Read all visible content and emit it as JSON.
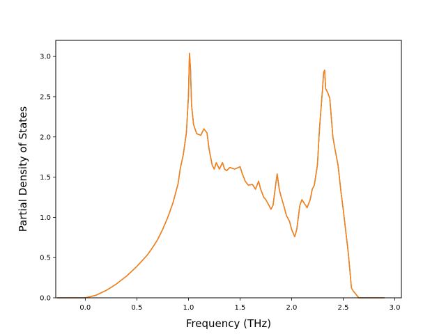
{
  "chart_data": {
    "type": "line",
    "xlabel": "Frequency (THz)",
    "ylabel": "Partial Density of States",
    "xlim": [
      -0.286,
      3.064
    ],
    "ylim": [
      0.0,
      3.2
    ],
    "x_ticks": [
      0.0,
      0.5,
      1.0,
      1.5,
      2.0,
      2.5,
      3.0
    ],
    "x_tick_labels": [
      "0.0",
      "0.5",
      "1.0",
      "1.5",
      "2.0",
      "2.5",
      "3.0"
    ],
    "y_ticks": [
      0.0,
      0.5,
      1.0,
      1.5,
      2.0,
      2.5,
      3.0
    ],
    "y_tick_labels": [
      "0.0",
      "0.5",
      "1.0",
      "1.5",
      "2.0",
      "2.5",
      "3.0"
    ],
    "grid": false,
    "series": [
      {
        "color": "#1f77b4",
        "x": [
          -0.27,
          -0.1,
          0.0,
          0.1,
          0.2,
          0.3,
          0.4,
          0.5,
          0.6,
          0.65,
          0.7,
          0.75,
          0.8,
          0.85,
          0.9,
          0.92,
          0.95,
          0.98,
          1.0,
          1.01,
          1.02,
          1.03,
          1.05,
          1.08,
          1.12,
          1.15,
          1.18,
          1.2,
          1.23,
          1.25,
          1.27,
          1.3,
          1.33,
          1.35,
          1.37,
          1.4,
          1.45,
          1.5,
          1.52,
          1.55,
          1.58,
          1.62,
          1.65,
          1.68,
          1.7,
          1.73,
          1.75,
          1.78,
          1.8,
          1.82,
          1.85,
          1.86,
          1.88,
          1.9,
          1.93,
          1.95,
          1.98,
          2.0,
          2.03,
          2.05,
          2.08,
          2.1,
          2.12,
          2.15,
          2.18,
          2.2,
          2.22,
          2.25,
          2.27,
          2.3,
          2.31,
          2.32,
          2.33,
          2.35,
          2.37,
          2.4,
          2.42,
          2.45,
          2.48,
          2.5,
          2.52,
          2.55,
          2.58,
          2.6,
          2.62,
          2.65,
          2.7,
          2.8,
          2.9
        ],
        "y": [
          0.0,
          0.0,
          0.0,
          0.03,
          0.09,
          0.17,
          0.27,
          0.39,
          0.53,
          0.62,
          0.72,
          0.85,
          1.0,
          1.18,
          1.42,
          1.6,
          1.78,
          2.05,
          2.5,
          3.04,
          2.85,
          2.4,
          2.15,
          2.04,
          2.02,
          2.1,
          2.05,
          1.85,
          1.65,
          1.6,
          1.68,
          1.6,
          1.68,
          1.6,
          1.58,
          1.62,
          1.6,
          1.63,
          1.55,
          1.45,
          1.4,
          1.41,
          1.35,
          1.45,
          1.35,
          1.25,
          1.22,
          1.15,
          1.1,
          1.15,
          1.45,
          1.54,
          1.35,
          1.25,
          1.12,
          1.02,
          0.95,
          0.85,
          0.76,
          0.85,
          1.15,
          1.22,
          1.18,
          1.12,
          1.22,
          1.35,
          1.4,
          1.65,
          2.1,
          2.6,
          2.8,
          2.83,
          2.6,
          2.55,
          2.48,
          2.0,
          1.85,
          1.65,
          1.3,
          1.1,
          0.88,
          0.55,
          0.12,
          0.08,
          0.05,
          0.0,
          0.0,
          0.0,
          0.0
        ]
      },
      {
        "color": "#ff7f0e",
        "x": [
          -0.27,
          -0.1,
          0.0,
          0.1,
          0.2,
          0.3,
          0.4,
          0.5,
          0.6,
          0.65,
          0.7,
          0.75,
          0.8,
          0.85,
          0.9,
          0.92,
          0.95,
          0.98,
          1.0,
          1.01,
          1.02,
          1.03,
          1.05,
          1.08,
          1.12,
          1.15,
          1.18,
          1.2,
          1.23,
          1.25,
          1.27,
          1.3,
          1.33,
          1.35,
          1.37,
          1.4,
          1.45,
          1.5,
          1.52,
          1.55,
          1.58,
          1.62,
          1.65,
          1.68,
          1.7,
          1.73,
          1.75,
          1.78,
          1.8,
          1.82,
          1.85,
          1.86,
          1.88,
          1.9,
          1.93,
          1.95,
          1.98,
          2.0,
          2.03,
          2.05,
          2.08,
          2.1,
          2.12,
          2.15,
          2.18,
          2.2,
          2.22,
          2.25,
          2.27,
          2.3,
          2.31,
          2.32,
          2.33,
          2.35,
          2.37,
          2.4,
          2.42,
          2.45,
          2.48,
          2.5,
          2.52,
          2.55,
          2.58,
          2.6,
          2.62,
          2.65,
          2.7,
          2.8,
          2.9
        ],
        "y": [
          0.0,
          0.0,
          0.0,
          0.03,
          0.09,
          0.17,
          0.27,
          0.39,
          0.53,
          0.62,
          0.72,
          0.85,
          1.0,
          1.18,
          1.42,
          1.6,
          1.78,
          2.05,
          2.5,
          3.04,
          2.85,
          2.4,
          2.15,
          2.04,
          2.02,
          2.1,
          2.05,
          1.85,
          1.65,
          1.6,
          1.68,
          1.6,
          1.68,
          1.6,
          1.58,
          1.62,
          1.6,
          1.63,
          1.55,
          1.45,
          1.4,
          1.41,
          1.35,
          1.45,
          1.35,
          1.25,
          1.22,
          1.15,
          1.1,
          1.15,
          1.45,
          1.54,
          1.35,
          1.25,
          1.12,
          1.02,
          0.95,
          0.85,
          0.76,
          0.85,
          1.15,
          1.22,
          1.18,
          1.12,
          1.22,
          1.35,
          1.4,
          1.65,
          2.1,
          2.6,
          2.8,
          2.83,
          2.6,
          2.55,
          2.48,
          2.0,
          1.85,
          1.65,
          1.3,
          1.1,
          0.88,
          0.55,
          0.12,
          0.08,
          0.05,
          0.0,
          0.0,
          0.0,
          0.0
        ]
      }
    ]
  }
}
